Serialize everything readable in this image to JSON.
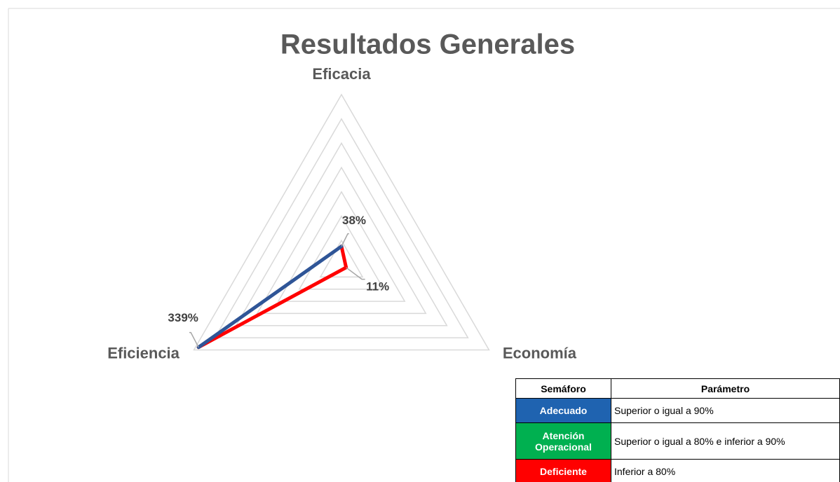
{
  "chart_data": {
    "type": "radar",
    "title": "Resultados Generales",
    "categories": [
      "Eficacia",
      "Economía",
      "Eficiencia"
    ],
    "series": [
      {
        "values": [
          38,
          11,
          339
        ],
        "value_labels": [
          "38%",
          "11%",
          "339%"
        ],
        "color": "#ff0000",
        "closing_color": "#2f5597"
      }
    ],
    "rlim": [
      0,
      350
    ],
    "rticks": [
      0,
      50,
      100,
      150,
      200,
      250,
      300,
      350
    ],
    "grid": true
  },
  "table": {
    "header": [
      "Semáforo",
      "Parámetro"
    ],
    "rows": [
      {
        "status": "Adecuado",
        "parameter": "Superior o igual a 90%",
        "color": "#1f63b0"
      },
      {
        "status": "Atención Operacional",
        "parameter": "Superior o igual a 80% e inferior a 90%",
        "color": "#00b050"
      },
      {
        "status": "Deficiente",
        "parameter": "Inferior a 80%",
        "color": "#ff0000"
      }
    ]
  }
}
